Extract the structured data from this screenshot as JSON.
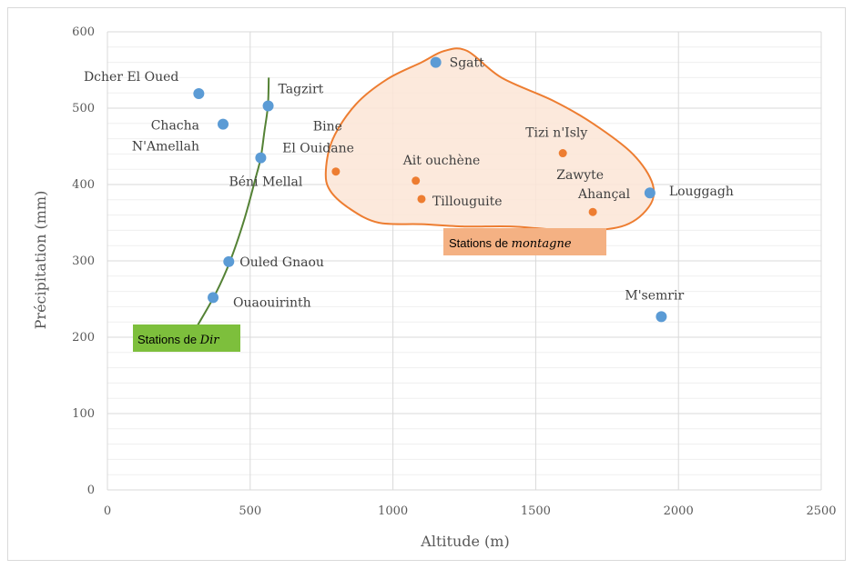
{
  "colors": {
    "dir_point": "#5b9bd5",
    "montagne_point": "#ed7d31",
    "dir_curve": "#548235",
    "dir_box": "#7dbf3c",
    "montagne_box": "#f4b183",
    "montagne_fill": "#fbe5d6",
    "montagne_stroke": "#ed7d31",
    "grid": "#d9d9d9",
    "text": "#595959"
  },
  "chart_data": {
    "type": "scatter",
    "title": "",
    "xlabel": "Altitude (m)",
    "ylabel": "Précipitation (mm)",
    "xlim": [
      0,
      2500
    ],
    "ylim": [
      0,
      600
    ],
    "x_ticks": [
      "0",
      "500",
      "1000",
      "1500",
      "2000",
      "2500"
    ],
    "y_ticks": [
      "0",
      "100",
      "200",
      "300",
      "400",
      "500",
      "600"
    ],
    "grid": true,
    "series": [
      {
        "color": "#5b9bd5",
        "points": [
          {
            "label": "Dcher El Oued",
            "x": 320,
            "y": 519
          },
          {
            "label": "Tagzirt",
            "x": 563,
            "y": 503
          },
          {
            "label": "Chacha N'Amellah",
            "x": 405,
            "y": 479
          },
          {
            "label": "Béni Mellal",
            "x": 537,
            "y": 435
          },
          {
            "label": "Ouled Gnaou",
            "x": 425,
            "y": 299
          },
          {
            "label": "Ouaouirinth",
            "x": 370,
            "y": 252
          },
          {
            "label": "Sgatt",
            "x": 1150,
            "y": 560
          },
          {
            "label": "Louggagh",
            "x": 1900,
            "y": 389
          },
          {
            "label": "M'semrir",
            "x": 1940,
            "y": 227
          }
        ]
      },
      {
        "color": "#ed7d31",
        "points": [
          {
            "label": "Bine El Ouidane",
            "x": 800,
            "y": 417
          },
          {
            "label": "Ait ouchène",
            "x": 1080,
            "y": 405
          },
          {
            "label": "Tillouguite",
            "x": 1100,
            "y": 381
          },
          {
            "label": "Tizi n'Isly",
            "x": 1595,
            "y": 441
          },
          {
            "label": "Zawyte Ahançal",
            "x": 1700,
            "y": 364
          }
        ]
      }
    ],
    "annotations": {
      "dir_box": {
        "prefix": "Stations de ",
        "emph": "Dir"
      },
      "montagne_box": {
        "prefix": "Stations de ",
        "emph": "montagne"
      },
      "dir_curve": [
        [
          315,
          215
        ],
        [
          380,
          258
        ],
        [
          430,
          300
        ],
        [
          480,
          355
        ],
        [
          520,
          410
        ],
        [
          537,
          435
        ],
        [
          550,
          470
        ],
        [
          562,
          503
        ],
        [
          565,
          540
        ]
      ],
      "montagne_region": [
        [
          765,
          418
        ],
        [
          790,
          460
        ],
        [
          870,
          505
        ],
        [
          980,
          538
        ],
        [
          1100,
          560
        ],
        [
          1180,
          575
        ],
        [
          1260,
          575
        ],
        [
          1380,
          540
        ],
        [
          1560,
          510
        ],
        [
          1700,
          480
        ],
        [
          1840,
          440
        ],
        [
          1910,
          400
        ],
        [
          1895,
          370
        ],
        [
          1800,
          345
        ],
        [
          1620,
          340
        ],
        [
          1420,
          345
        ],
        [
          1250,
          345
        ],
        [
          1100,
          348
        ],
        [
          950,
          350
        ],
        [
          850,
          368
        ],
        [
          780,
          392
        ]
      ]
    }
  }
}
